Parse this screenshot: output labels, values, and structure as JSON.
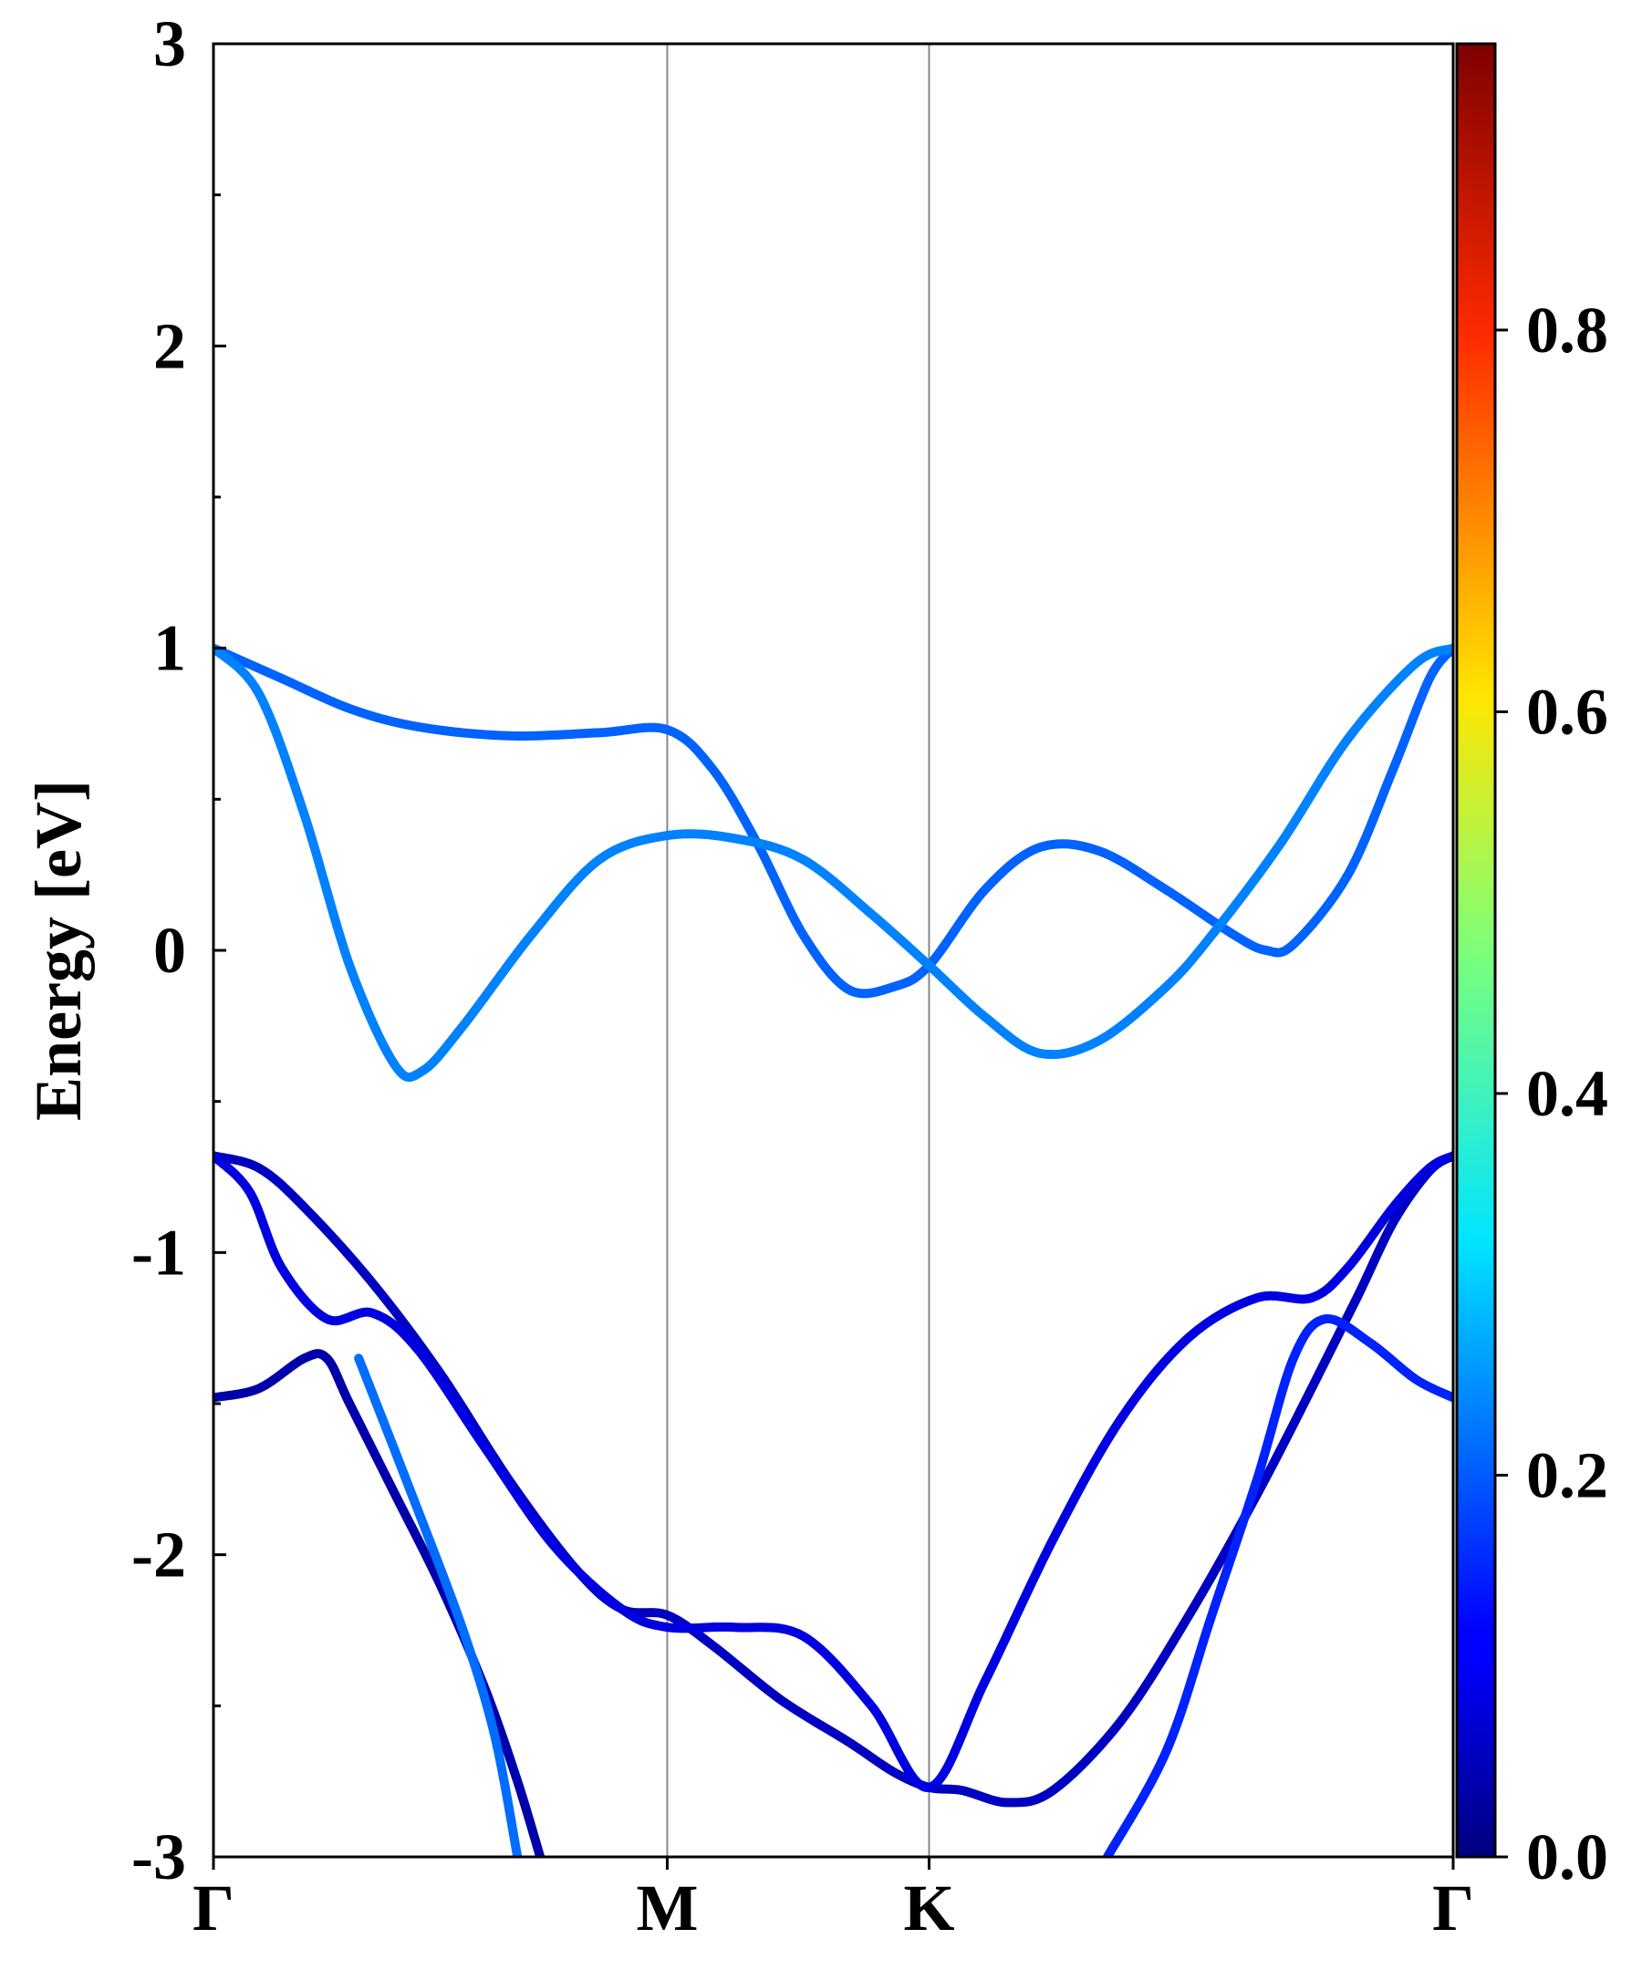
{
  "chart_data": {
    "type": "line",
    "title": "",
    "xlabel": "",
    "ylabel": "Energy [eV]",
    "ylim": [
      -3,
      3
    ],
    "yticks": [
      "-3",
      "-2",
      "-1",
      "0",
      "1",
      "2",
      "3"
    ],
    "kpoints": [
      {
        "label": "Γ",
        "x": 0.0
      },
      {
        "label": "M",
        "x": 1.0
      },
      {
        "label": "K",
        "x": 1.577
      },
      {
        "label": "Γ",
        "x": 2.732
      }
    ],
    "colorbar": {
      "colormap": "jet",
      "range": [
        0.0,
        0.95
      ],
      "ticks": [
        "0.0",
        "0.2",
        "0.4",
        "0.6",
        "0.8"
      ]
    },
    "grid": false,
    "series": [
      {
        "weight": 0.21,
        "points": [
          [
            0,
            1.0
          ],
          [
            0.15,
            0.9
          ],
          [
            0.3,
            0.8
          ],
          [
            0.45,
            0.74
          ],
          [
            0.65,
            0.71
          ],
          [
            0.85,
            0.72
          ],
          [
            1.0,
            0.73
          ],
          [
            1.1,
            0.6
          ],
          [
            1.2,
            0.35
          ],
          [
            1.3,
            0.05
          ],
          [
            1.4,
            -0.13
          ],
          [
            1.5,
            -0.12
          ],
          [
            1.577,
            -0.05
          ],
          [
            1.7,
            0.2
          ],
          [
            1.82,
            0.34
          ],
          [
            1.95,
            0.33
          ],
          [
            2.1,
            0.2
          ],
          [
            2.25,
            0.05
          ],
          [
            2.32,
            0.0
          ],
          [
            2.38,
            0.02
          ],
          [
            2.5,
            0.25
          ],
          [
            2.6,
            0.6
          ],
          [
            2.68,
            0.9
          ],
          [
            2.732,
            1.0
          ]
        ]
      },
      {
        "weight": 0.24,
        "points": [
          [
            0,
            1.0
          ],
          [
            0.1,
            0.85
          ],
          [
            0.2,
            0.45
          ],
          [
            0.3,
            -0.05
          ],
          [
            0.4,
            -0.38
          ],
          [
            0.46,
            -0.4
          ],
          [
            0.55,
            -0.25
          ],
          [
            0.7,
            0.05
          ],
          [
            0.85,
            0.3
          ],
          [
            1.0,
            0.38
          ],
          [
            1.15,
            0.37
          ],
          [
            1.3,
            0.3
          ],
          [
            1.45,
            0.12
          ],
          [
            1.577,
            -0.05
          ],
          [
            1.7,
            -0.22
          ],
          [
            1.82,
            -0.34
          ],
          [
            1.95,
            -0.3
          ],
          [
            2.1,
            -0.12
          ],
          [
            2.2,
            0.05
          ],
          [
            2.35,
            0.35
          ],
          [
            2.5,
            0.7
          ],
          [
            2.65,
            0.95
          ],
          [
            2.732,
            1.0
          ]
        ]
      },
      {
        "weight": 0.06,
        "points": [
          [
            0,
            -0.68
          ],
          [
            0.1,
            -0.72
          ],
          [
            0.2,
            -0.85
          ],
          [
            0.35,
            -1.1
          ],
          [
            0.5,
            -1.4
          ],
          [
            0.65,
            -1.75
          ],
          [
            0.8,
            -2.05
          ],
          [
            0.9,
            -2.18
          ],
          [
            1.0,
            -2.2
          ],
          [
            1.1,
            -2.3
          ],
          [
            1.25,
            -2.48
          ],
          [
            1.4,
            -2.62
          ],
          [
            1.5,
            -2.72
          ],
          [
            1.577,
            -2.77
          ],
          [
            1.65,
            -2.78
          ],
          [
            1.75,
            -2.82
          ],
          [
            1.85,
            -2.78
          ],
          [
            2.0,
            -2.55
          ],
          [
            2.15,
            -2.2
          ],
          [
            2.3,
            -1.8
          ],
          [
            2.42,
            -1.45
          ],
          [
            2.52,
            -1.15
          ],
          [
            2.6,
            -0.9
          ],
          [
            2.68,
            -0.73
          ],
          [
            2.732,
            -0.68
          ]
        ]
      },
      {
        "weight": 0.09,
        "points": [
          [
            0,
            -0.68
          ],
          [
            0.08,
            -0.8
          ],
          [
            0.15,
            -1.05
          ],
          [
            0.25,
            -1.22
          ],
          [
            0.35,
            -1.2
          ],
          [
            0.45,
            -1.32
          ],
          [
            0.6,
            -1.65
          ],
          [
            0.75,
            -1.97
          ],
          [
            0.9,
            -2.18
          ],
          [
            1.0,
            -2.24
          ],
          [
            1.15,
            -2.24
          ],
          [
            1.3,
            -2.27
          ],
          [
            1.45,
            -2.5
          ],
          [
            1.577,
            -2.77
          ],
          [
            1.7,
            -2.42
          ],
          [
            1.85,
            -1.95
          ],
          [
            2.0,
            -1.55
          ],
          [
            2.15,
            -1.28
          ],
          [
            2.3,
            -1.15
          ],
          [
            2.42,
            -1.15
          ],
          [
            2.5,
            -1.05
          ],
          [
            2.6,
            -0.85
          ],
          [
            2.68,
            -0.72
          ],
          [
            2.732,
            -0.68
          ]
        ]
      },
      {
        "weight": 0.04,
        "points": [
          [
            0,
            -1.48
          ],
          [
            0.1,
            -1.45
          ],
          [
            0.2,
            -1.35
          ],
          [
            0.25,
            -1.35
          ],
          [
            0.3,
            -1.5
          ],
          [
            0.4,
            -1.8
          ],
          [
            0.5,
            -2.1
          ],
          [
            0.6,
            -2.45
          ],
          [
            0.67,
            -2.75
          ],
          [
            0.72,
            -3.0
          ]
        ]
      },
      {
        "weight": 0.22,
        "points": [
          [
            0.32,
            -1.35
          ],
          [
            0.45,
            -1.85
          ],
          [
            0.55,
            -2.25
          ],
          [
            0.62,
            -2.6
          ],
          [
            0.67,
            -3.0
          ]
        ]
      },
      {
        "weight": 0.15,
        "points": [
          [
            1.97,
            -3.0
          ],
          [
            2.1,
            -2.65
          ],
          [
            2.2,
            -2.2
          ],
          [
            2.3,
            -1.75
          ],
          [
            2.38,
            -1.35
          ],
          [
            2.45,
            -1.22
          ],
          [
            2.55,
            -1.3
          ],
          [
            2.65,
            -1.42
          ],
          [
            2.732,
            -1.48
          ]
        ]
      }
    ]
  }
}
